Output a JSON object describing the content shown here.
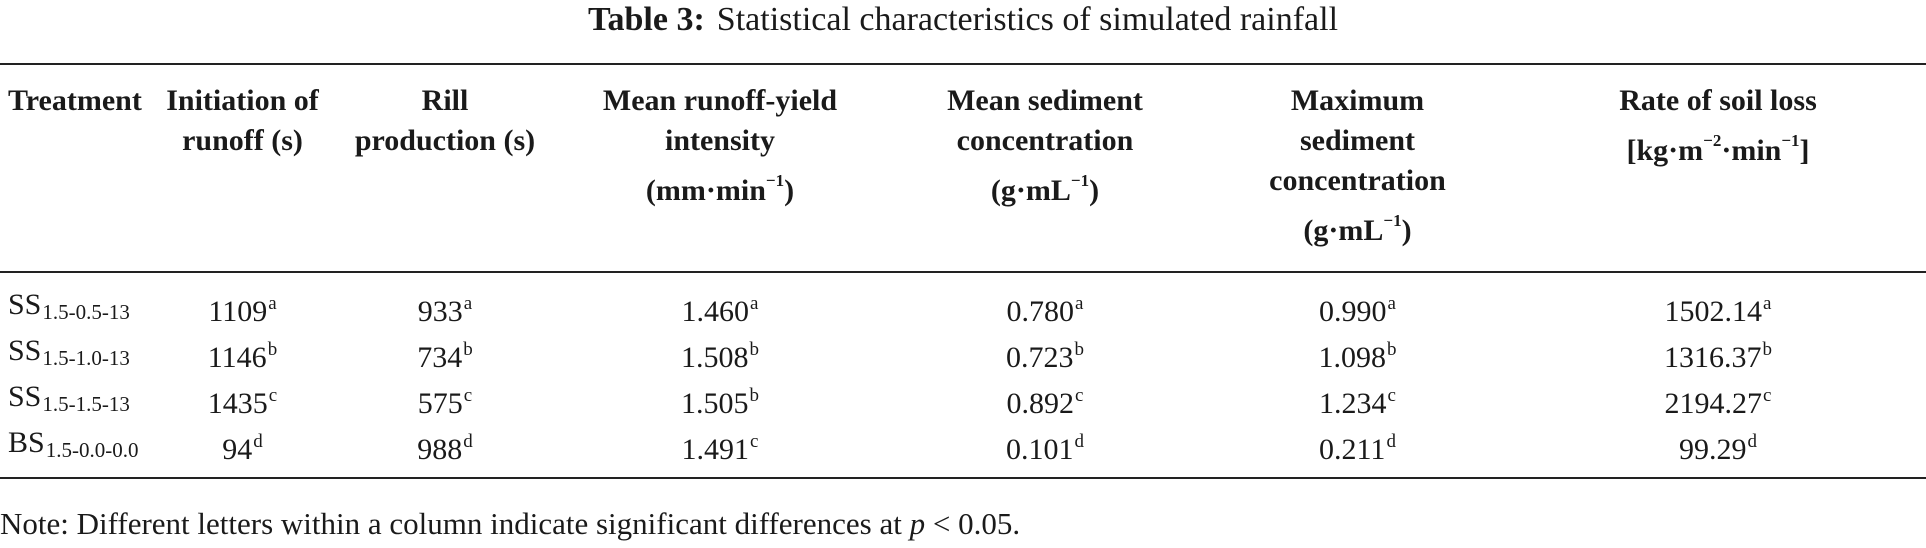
{
  "caption": {
    "label": "Table 3:",
    "title": "Statistical characteristics of simulated rainfall"
  },
  "columns": [
    {
      "key": "treatment",
      "lines": [
        "Treatment"
      ]
    },
    {
      "key": "initiation",
      "lines": [
        "Initiation of",
        "runoff (s)"
      ]
    },
    {
      "key": "rill",
      "lines": [
        "Rill",
        "production (s)"
      ]
    },
    {
      "key": "runoff_intensity",
      "lines": [
        "Mean runoff-yield",
        "intensity",
        "(mm·min|-1|)"
      ]
    },
    {
      "key": "mean_sediment",
      "lines": [
        "Mean sediment",
        "concentration",
        "(g·mL|-1|)"
      ]
    },
    {
      "key": "max_sediment",
      "lines": [
        "Maximum",
        "sediment",
        "concentration",
        "(g·mL|-1|)"
      ]
    },
    {
      "key": "soil_loss",
      "lines": [
        "Rate of soil loss",
        "[kg·m|-2|·min|-1|]"
      ]
    }
  ],
  "rows": [
    {
      "treatment": {
        "base": "SS",
        "sub": "1.5-0.5-13"
      },
      "cells": [
        [
          "1109",
          "a"
        ],
        [
          "933",
          "a"
        ],
        [
          "1.460",
          "a"
        ],
        [
          "0.780",
          "a"
        ],
        [
          "0.990",
          "a"
        ],
        [
          "1502.14",
          "a"
        ]
      ]
    },
    {
      "treatment": {
        "base": "SS",
        "sub": "1.5-1.0-13"
      },
      "cells": [
        [
          "1146",
          "b"
        ],
        [
          "734",
          "b"
        ],
        [
          "1.508",
          "b"
        ],
        [
          "0.723",
          "b"
        ],
        [
          "1.098",
          "b"
        ],
        [
          "1316.37",
          "b"
        ]
      ]
    },
    {
      "treatment": {
        "base": "SS",
        "sub": "1.5-1.5-13"
      },
      "cells": [
        [
          "1435",
          "c"
        ],
        [
          "575",
          "c"
        ],
        [
          "1.505",
          "b"
        ],
        [
          "0.892",
          "c"
        ],
        [
          "1.234",
          "c"
        ],
        [
          "2194.27",
          "c"
        ]
      ]
    },
    {
      "treatment": {
        "base": "BS",
        "sub": "1.5-0.0-0.0"
      },
      "cells": [
        [
          "94",
          "d"
        ],
        [
          "988",
          "d"
        ],
        [
          "1.491",
          "c"
        ],
        [
          "0.101",
          "d"
        ],
        [
          "0.211",
          "d"
        ],
        [
          "99.29",
          "d"
        ]
      ]
    }
  ],
  "note": {
    "prefix": "Note: Different letters within a column indicate significant differences at",
    "p": "p",
    "suffix": "< 0.05."
  }
}
